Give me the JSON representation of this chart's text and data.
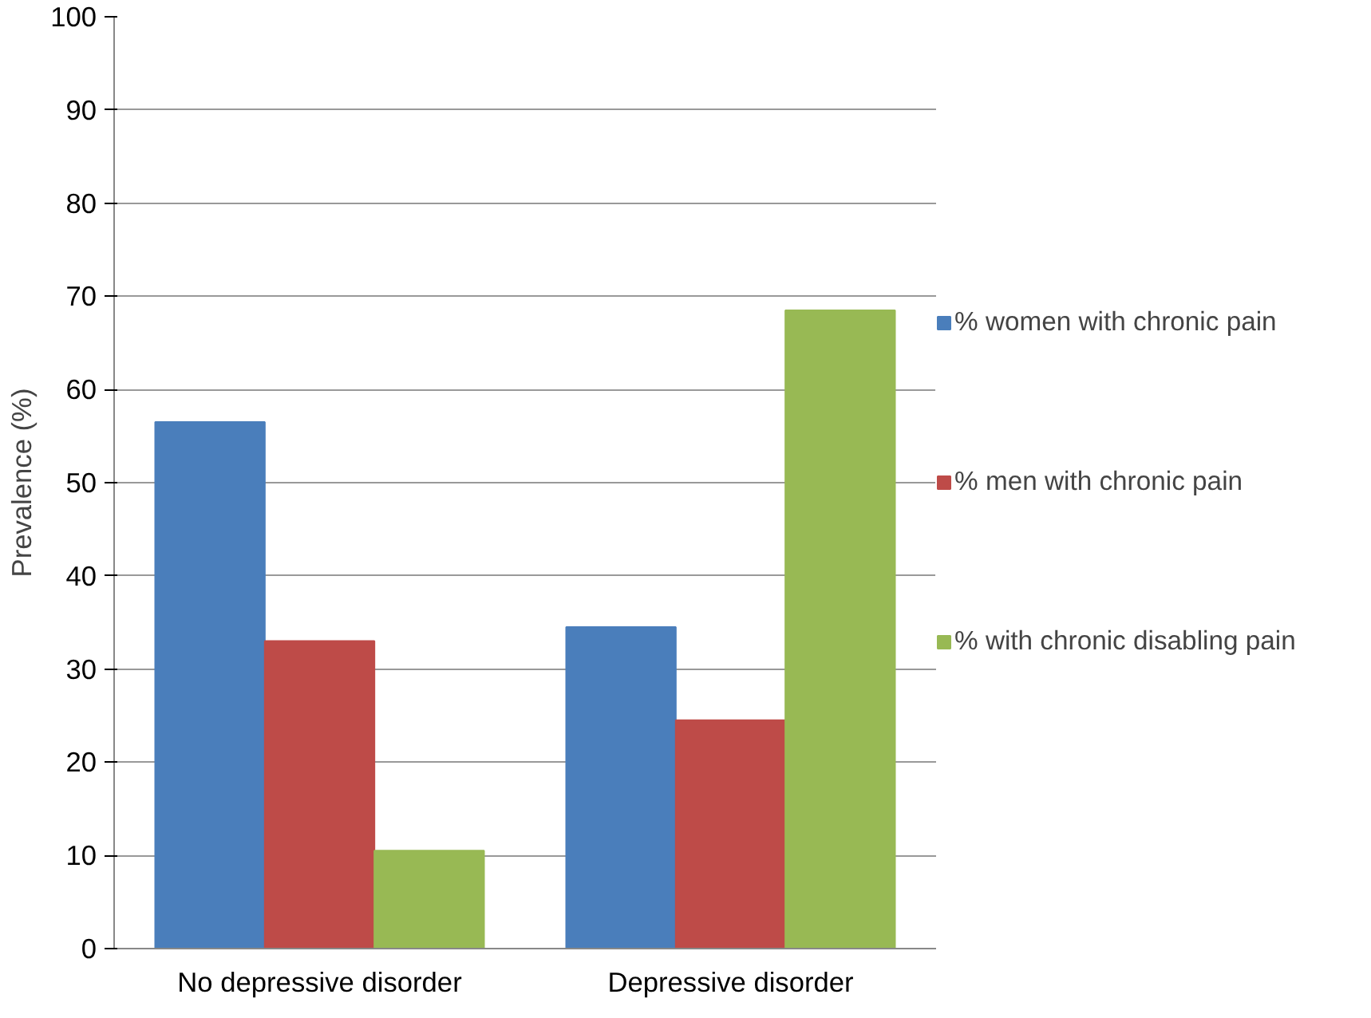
{
  "chart_data": {
    "type": "bar",
    "ylabel": "Prevalence (%)",
    "categories": [
      "No depressive disorder",
      "Depressive disorder"
    ],
    "series": [
      {
        "name": "% women with chronic pain",
        "color": "#4a7ebb",
        "values": [
          56.5,
          34.5
        ]
      },
      {
        "name": "% men with chronic pain",
        "color": "#be4b48",
        "values": [
          33,
          24.5
        ]
      },
      {
        "name": "% with chronic disabling pain",
        "color": "#98b954",
        "values": [
          10.5,
          68.5
        ]
      }
    ],
    "ylim": [
      0,
      100
    ],
    "yticks": [
      0,
      10,
      20,
      30,
      40,
      50,
      60,
      70,
      80,
      90,
      100
    ],
    "grid": "y",
    "legend": "right"
  }
}
